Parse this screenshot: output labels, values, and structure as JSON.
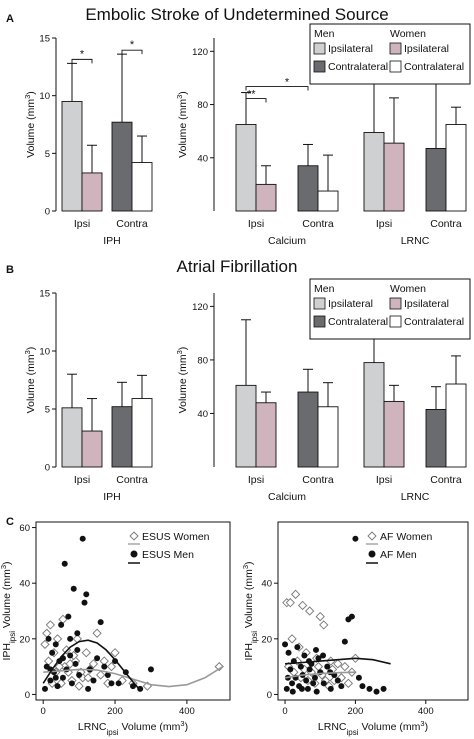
{
  "colors": {
    "men_ipsilateral": "#cfd0d2",
    "women_ipsilateral": "#cfb3bd",
    "men_contralateral": "#6a6b6e",
    "women_contralateral": "#ffffff",
    "esus_women_marker": "#888888",
    "men_marker": "#111111"
  },
  "panels": {
    "A": {
      "letter": "A",
      "title": "Embolic Stroke of Undetermined Source"
    },
    "B": {
      "letter": "B",
      "title": "Atrial Fibrillation"
    },
    "C": {
      "letter": "C"
    }
  },
  "legend": {
    "men_header": "Men",
    "women_header": "Women",
    "ipsilateral": "Ipsilateral",
    "contralateral": "Contralateral"
  },
  "chart_data": [
    {
      "id": "A-IPH",
      "type": "bar",
      "panel": "A",
      "categories": [
        "Ipsi",
        "Contra"
      ],
      "xlabel": "IPH",
      "ylabel": "Volume (mm³)",
      "ylim": [
        0,
        15
      ],
      "yticks": [
        0,
        5,
        10,
        15
      ],
      "series": [
        {
          "name": "Men",
          "values": [
            9.5,
            7.7
          ],
          "errors": [
            3.3,
            5.9
          ]
        },
        {
          "name": "Women",
          "values": [
            3.3,
            4.2
          ],
          "errors": [
            2.4,
            2.3
          ]
        }
      ],
      "significance": [
        {
          "label": "*"
        },
        {
          "label": "*"
        }
      ]
    },
    {
      "id": "A-CL",
      "type": "bar",
      "panel": "A",
      "categories": [
        "Ipsi",
        "Contra",
        "Ipsi",
        "Contra"
      ],
      "groups": [
        "Calcium",
        "LRNC"
      ],
      "ylabel": "Volume (mm³)",
      "ylim": [
        0,
        130
      ],
      "yticks": [
        40,
        80,
        120
      ],
      "series": [
        {
          "name": "Men",
          "values": [
            65,
            34,
            59,
            47
          ],
          "errors": [
            24,
            16,
            42,
            53
          ]
        },
        {
          "name": "Women",
          "values": [
            20,
            15,
            51,
            65
          ],
          "errors": [
            14,
            27,
            34,
            13
          ]
        }
      ],
      "significance": [
        {
          "label": "**"
        },
        {
          "label": "*"
        }
      ]
    },
    {
      "id": "B-IPH",
      "type": "bar",
      "panel": "B",
      "categories": [
        "Ipsi",
        "Contra"
      ],
      "xlabel": "IPH",
      "ylabel": "Volume (mm³)",
      "ylim": [
        0,
        15
      ],
      "yticks": [
        0,
        5,
        10,
        15
      ],
      "series": [
        {
          "name": "Men",
          "values": [
            5.1,
            5.2
          ],
          "errors": [
            2.9,
            2.1
          ]
        },
        {
          "name": "Women",
          "values": [
            3.1,
            5.9
          ],
          "errors": [
            2.8,
            2.0
          ]
        }
      ]
    },
    {
      "id": "B-CL",
      "type": "bar",
      "panel": "B",
      "categories": [
        "Ipsi",
        "Contra",
        "Ipsi",
        "Contra"
      ],
      "groups": [
        "Calcium",
        "LRNC"
      ],
      "ylabel": "Volume (mm³)",
      "ylim": [
        0,
        130
      ],
      "yticks": [
        40,
        80,
        120
      ],
      "series": [
        {
          "name": "Men",
          "values": [
            61,
            56,
            78,
            43
          ],
          "errors": [
            49,
            17,
            29,
            17
          ]
        },
        {
          "name": "Women",
          "values": [
            48,
            45,
            49,
            62
          ],
          "errors": [
            8,
            18,
            12,
            21
          ]
        }
      ]
    },
    {
      "id": "C-ESUS",
      "type": "scatter",
      "panel": "C",
      "xlabel": "LRNCipsi Volume (mm³)",
      "ylabel": "IPHipsi Volume (mm³)",
      "xlim": [
        -20,
        520
      ],
      "ylim": [
        -2,
        62
      ],
      "xticks": [
        0,
        200,
        400
      ],
      "yticks": [
        0,
        20,
        40,
        60
      ],
      "legend": [
        "ESUS Women",
        "ESUS Men"
      ],
      "series": [
        {
          "name": "ESUS Women",
          "marker": "diamond",
          "points": [
            [
              5,
              18
            ],
            [
              10,
              22
            ],
            [
              20,
              25
            ],
            [
              30,
              15
            ],
            [
              40,
              20
            ],
            [
              55,
              27
            ],
            [
              60,
              10
            ],
            [
              70,
              8
            ],
            [
              80,
              5
            ],
            [
              90,
              12
            ],
            [
              100,
              3
            ],
            [
              110,
              6
            ],
            [
              120,
              15
            ],
            [
              130,
              9
            ],
            [
              140,
              11
            ],
            [
              150,
              22
            ],
            [
              160,
              7
            ],
            [
              170,
              12
            ],
            [
              180,
              4
            ],
            [
              190,
              10
            ],
            [
              200,
              15
            ],
            [
              220,
              5
            ],
            [
              250,
              4
            ],
            [
              290,
              3
            ],
            [
              15,
              12
            ],
            [
              25,
              4
            ],
            [
              35,
              8
            ],
            [
              45,
              10
            ],
            [
              65,
              16
            ],
            [
              85,
              14
            ],
            [
              95,
              20
            ],
            [
              105,
              8
            ],
            [
              75,
              11
            ],
            [
              125,
              6
            ],
            [
              50,
              4
            ],
            [
              490,
              10
            ]
          ],
          "fit": [
            [
              0,
              8
            ],
            [
              50,
              8.5
            ],
            [
              100,
              9
            ],
            [
              150,
              8.8
            ],
            [
              200,
              7.5
            ],
            [
              250,
              5.5
            ],
            [
              300,
              3.5
            ],
            [
              350,
              2.8
            ],
            [
              400,
              3.5
            ],
            [
              450,
              6
            ],
            [
              500,
              10
            ]
          ]
        },
        {
          "name": "ESUS Men",
          "marker": "circle",
          "points": [
            [
              5,
              2
            ],
            [
              10,
              10
            ],
            [
              15,
              20
            ],
            [
              20,
              5
            ],
            [
              25,
              15
            ],
            [
              30,
              8
            ],
            [
              35,
              18
            ],
            [
              40,
              3
            ],
            [
              45,
              12
            ],
            [
              50,
              25
            ],
            [
              55,
              6
            ],
            [
              60,
              47
            ],
            [
              65,
              9
            ],
            [
              70,
              28
            ],
            [
              75,
              14
            ],
            [
              80,
              4
            ],
            [
              85,
              38
            ],
            [
              90,
              11
            ],
            [
              95,
              22
            ],
            [
              100,
              7
            ],
            [
              110,
              56
            ],
            [
              115,
              33
            ],
            [
              120,
              36
            ],
            [
              130,
              9
            ],
            [
              140,
              5
            ],
            [
              150,
              13
            ],
            [
              160,
              26
            ],
            [
              170,
              10
            ],
            [
              180,
              7
            ],
            [
              190,
              4
            ],
            [
              200,
              12
            ],
            [
              210,
              4
            ],
            [
              230,
              8
            ],
            [
              250,
              3
            ],
            [
              270,
              2
            ],
            [
              300,
              9
            ],
            [
              20,
              9
            ],
            [
              35,
              6
            ],
            [
              55,
              13
            ],
            [
              75,
              20
            ],
            [
              95,
              16
            ],
            [
              125,
              2
            ]
          ],
          "fit": [
            [
              0,
              4
            ],
            [
              25,
              9
            ],
            [
              50,
              13.5
            ],
            [
              75,
              17
            ],
            [
              100,
              19
            ],
            [
              125,
              19.5
            ],
            [
              150,
              18.5
            ],
            [
              175,
              16
            ],
            [
              200,
              12.5
            ],
            [
              225,
              8.5
            ],
            [
              250,
              4.5
            ],
            [
              270,
              1.5
            ]
          ]
        }
      ]
    },
    {
      "id": "C-AF",
      "type": "scatter",
      "panel": "C",
      "xlabel": "LRNCipsi Volume (mm³)",
      "ylabel": "IPHipsi Volume (mm³)",
      "xlim": [
        -20,
        520
      ],
      "ylim": [
        -2,
        62
      ],
      "xticks": [
        0,
        200,
        400
      ],
      "yticks": [
        0,
        20,
        40
      ],
      "legend": [
        "AF Women",
        "AF Men"
      ],
      "series": [
        {
          "name": "AF Women",
          "marker": "diamond",
          "points": [
            [
              5,
              33
            ],
            [
              15,
              33
            ],
            [
              30,
              36
            ],
            [
              50,
              32
            ],
            [
              70,
              30
            ],
            [
              100,
              28
            ],
            [
              110,
              25
            ],
            [
              20,
              20
            ],
            [
              40,
              17
            ],
            [
              60,
              15
            ],
            [
              90,
              13
            ],
            [
              130,
              12
            ],
            [
              150,
              11
            ],
            [
              170,
              10
            ],
            [
              200,
              13
            ],
            [
              10,
              10
            ],
            [
              25,
              8
            ],
            [
              45,
              6
            ],
            [
              65,
              5
            ],
            [
              85,
              4
            ],
            [
              105,
              7
            ],
            [
              125,
              3
            ],
            [
              140,
              5
            ],
            [
              160,
              6
            ],
            [
              180,
              4
            ],
            [
              35,
              12
            ],
            [
              55,
              9
            ],
            [
              75,
              8
            ],
            [
              95,
              10
            ],
            [
              115,
              5
            ],
            [
              135,
              9
            ],
            [
              190,
              8
            ]
          ],
          "fit": [
            [
              0,
              6
            ],
            [
              50,
              7
            ],
            [
              100,
              7.5
            ],
            [
              150,
              7.8
            ],
            [
              200,
              8
            ]
          ]
        },
        {
          "name": "AF Men",
          "marker": "circle",
          "points": [
            [
              0,
              18
            ],
            [
              5,
              2
            ],
            [
              10,
              15
            ],
            [
              15,
              9
            ],
            [
              20,
              4
            ],
            [
              25,
              12
            ],
            [
              30,
              6
            ],
            [
              35,
              17
            ],
            [
              40,
              3
            ],
            [
              45,
              10
            ],
            [
              50,
              7
            ],
            [
              55,
              14
            ],
            [
              60,
              5
            ],
            [
              65,
              2
            ],
            [
              70,
              9
            ],
            [
              75,
              11
            ],
            [
              80,
              4
            ],
            [
              85,
              6
            ],
            [
              90,
              1
            ],
            [
              95,
              13
            ],
            [
              100,
              8
            ],
            [
              110,
              4
            ],
            [
              120,
              10
            ],
            [
              130,
              2
            ],
            [
              140,
              7
            ],
            [
              150,
              5
            ],
            [
              160,
              3
            ],
            [
              170,
              19
            ],
            [
              180,
              27
            ],
            [
              190,
              28
            ],
            [
              200,
              56
            ],
            [
              210,
              6
            ],
            [
              220,
              3
            ],
            [
              240,
              2
            ],
            [
              260,
              1
            ],
            [
              280,
              2
            ],
            [
              8,
              6
            ],
            [
              22,
              1
            ],
            [
              48,
              2
            ],
            [
              68,
              12
            ],
            [
              88,
              16
            ],
            [
              108,
              14
            ],
            [
              128,
              8
            ]
          ],
          "fit": [
            [
              0,
              11
            ],
            [
              50,
              11.5
            ],
            [
              100,
              12
            ],
            [
              150,
              12.5
            ],
            [
              200,
              13
            ],
            [
              250,
              12.5
            ],
            [
              300,
              11
            ]
          ]
        }
      ]
    }
  ]
}
